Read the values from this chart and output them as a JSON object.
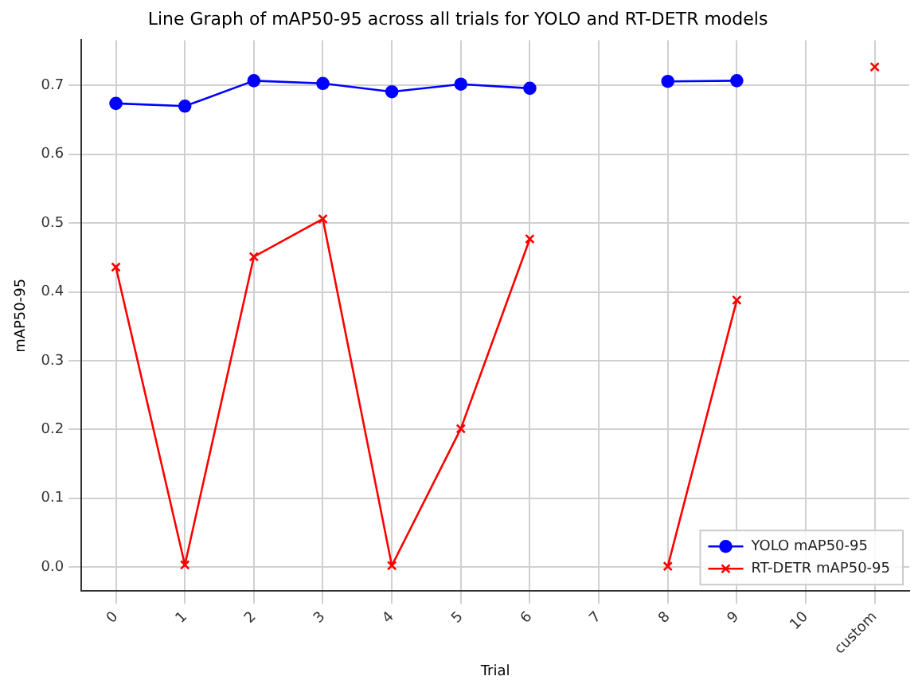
{
  "chart_data": {
    "type": "line",
    "title": "Line Graph of mAP50-95 across all trials for YOLO and RT-DETR models",
    "xlabel": "Trial",
    "ylabel": "mAP50-95",
    "categories": [
      "0",
      "1",
      "2",
      "3",
      "4",
      "5",
      "6",
      "7",
      "8",
      "9",
      "10",
      "custom"
    ],
    "series": [
      {
        "name": "YOLO mAP50-95",
        "color": "#0000ff",
        "marker": "circle",
        "values": [
          0.674,
          0.67,
          0.707,
          0.703,
          0.691,
          0.702,
          0.696,
          null,
          0.706,
          0.707,
          null,
          null
        ]
      },
      {
        "name": "RT-DETR mAP50-95",
        "color": "#ff0000",
        "marker": "cross",
        "values": [
          0.436,
          0.003,
          0.451,
          0.506,
          0.002,
          0.201,
          0.477,
          null,
          0.001,
          0.388,
          null,
          0.727
        ]
      }
    ],
    "ylim": [
      -0.035,
      0.766
    ],
    "yticks": [
      {
        "value": 0,
        "label": "0.0"
      },
      0.1,
      0.2,
      0.3,
      0.4,
      0.5,
      0.6,
      0.7
    ],
    "grid": true,
    "legend": "bottom right",
    "line_style": "solid"
  }
}
